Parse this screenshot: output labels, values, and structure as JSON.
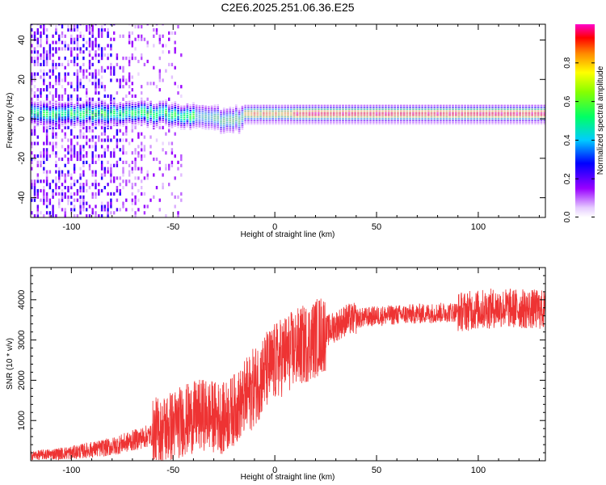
{
  "title": "C2E6.2025.251.06.36.E25",
  "chart_data": [
    {
      "type": "heatmap",
      "name": "spectrogram",
      "xlabel": "Height of straight line (km)",
      "ylabel": "Frequency (Hz)",
      "xlim": [
        -120,
        133
      ],
      "ylim": [
        -50,
        48
      ],
      "xticks": [
        -100,
        -50,
        0,
        50,
        100
      ],
      "yticks": [
        -40,
        -20,
        0,
        20,
        40
      ],
      "colorbar": {
        "label": "Normalized spectral amplitude",
        "range": [
          0,
          1
        ],
        "ticks": [
          0.0,
          0.2,
          0.4,
          0.6,
          0.8
        ],
        "tick_labels": [
          "0.0",
          "0.2",
          "0.4",
          "0.6",
          "0.8"
        ]
      },
      "ridge": {
        "frequency_hz": 2,
        "from_km": -120,
        "to_km": 133,
        "peak_amplitude": 1.0
      },
      "noise_region_km": [
        -120,
        -50
      ]
    },
    {
      "type": "line",
      "name": "snr",
      "xlabel": "Height of straight line (km)",
      "ylabel": "SNR (10 * v/v)",
      "xlim": [
        -120,
        133
      ],
      "ylim": [
        0,
        4800
      ],
      "xticks": [
        -100,
        -50,
        0,
        50,
        100
      ],
      "yticks": [
        1000,
        2000,
        3000,
        4000
      ],
      "color": "#ee3333",
      "trend": [
        {
          "x": -120,
          "y": 130
        },
        {
          "x": -100,
          "y": 200
        },
        {
          "x": -80,
          "y": 350
        },
        {
          "x": -60,
          "y": 650
        },
        {
          "x": -45,
          "y": 1000
        },
        {
          "x": -35,
          "y": 1150
        },
        {
          "x": -25,
          "y": 1050
        },
        {
          "x": -15,
          "y": 1500
        },
        {
          "x": -5,
          "y": 2200
        },
        {
          "x": 5,
          "y": 2650
        },
        {
          "x": 15,
          "y": 2900
        },
        {
          "x": 25,
          "y": 3200
        },
        {
          "x": 35,
          "y": 3500
        },
        {
          "x": 50,
          "y": 3600
        },
        {
          "x": 70,
          "y": 3650
        },
        {
          "x": 90,
          "y": 3700
        },
        {
          "x": 110,
          "y": 3800
        },
        {
          "x": 133,
          "y": 3750
        }
      ]
    }
  ]
}
